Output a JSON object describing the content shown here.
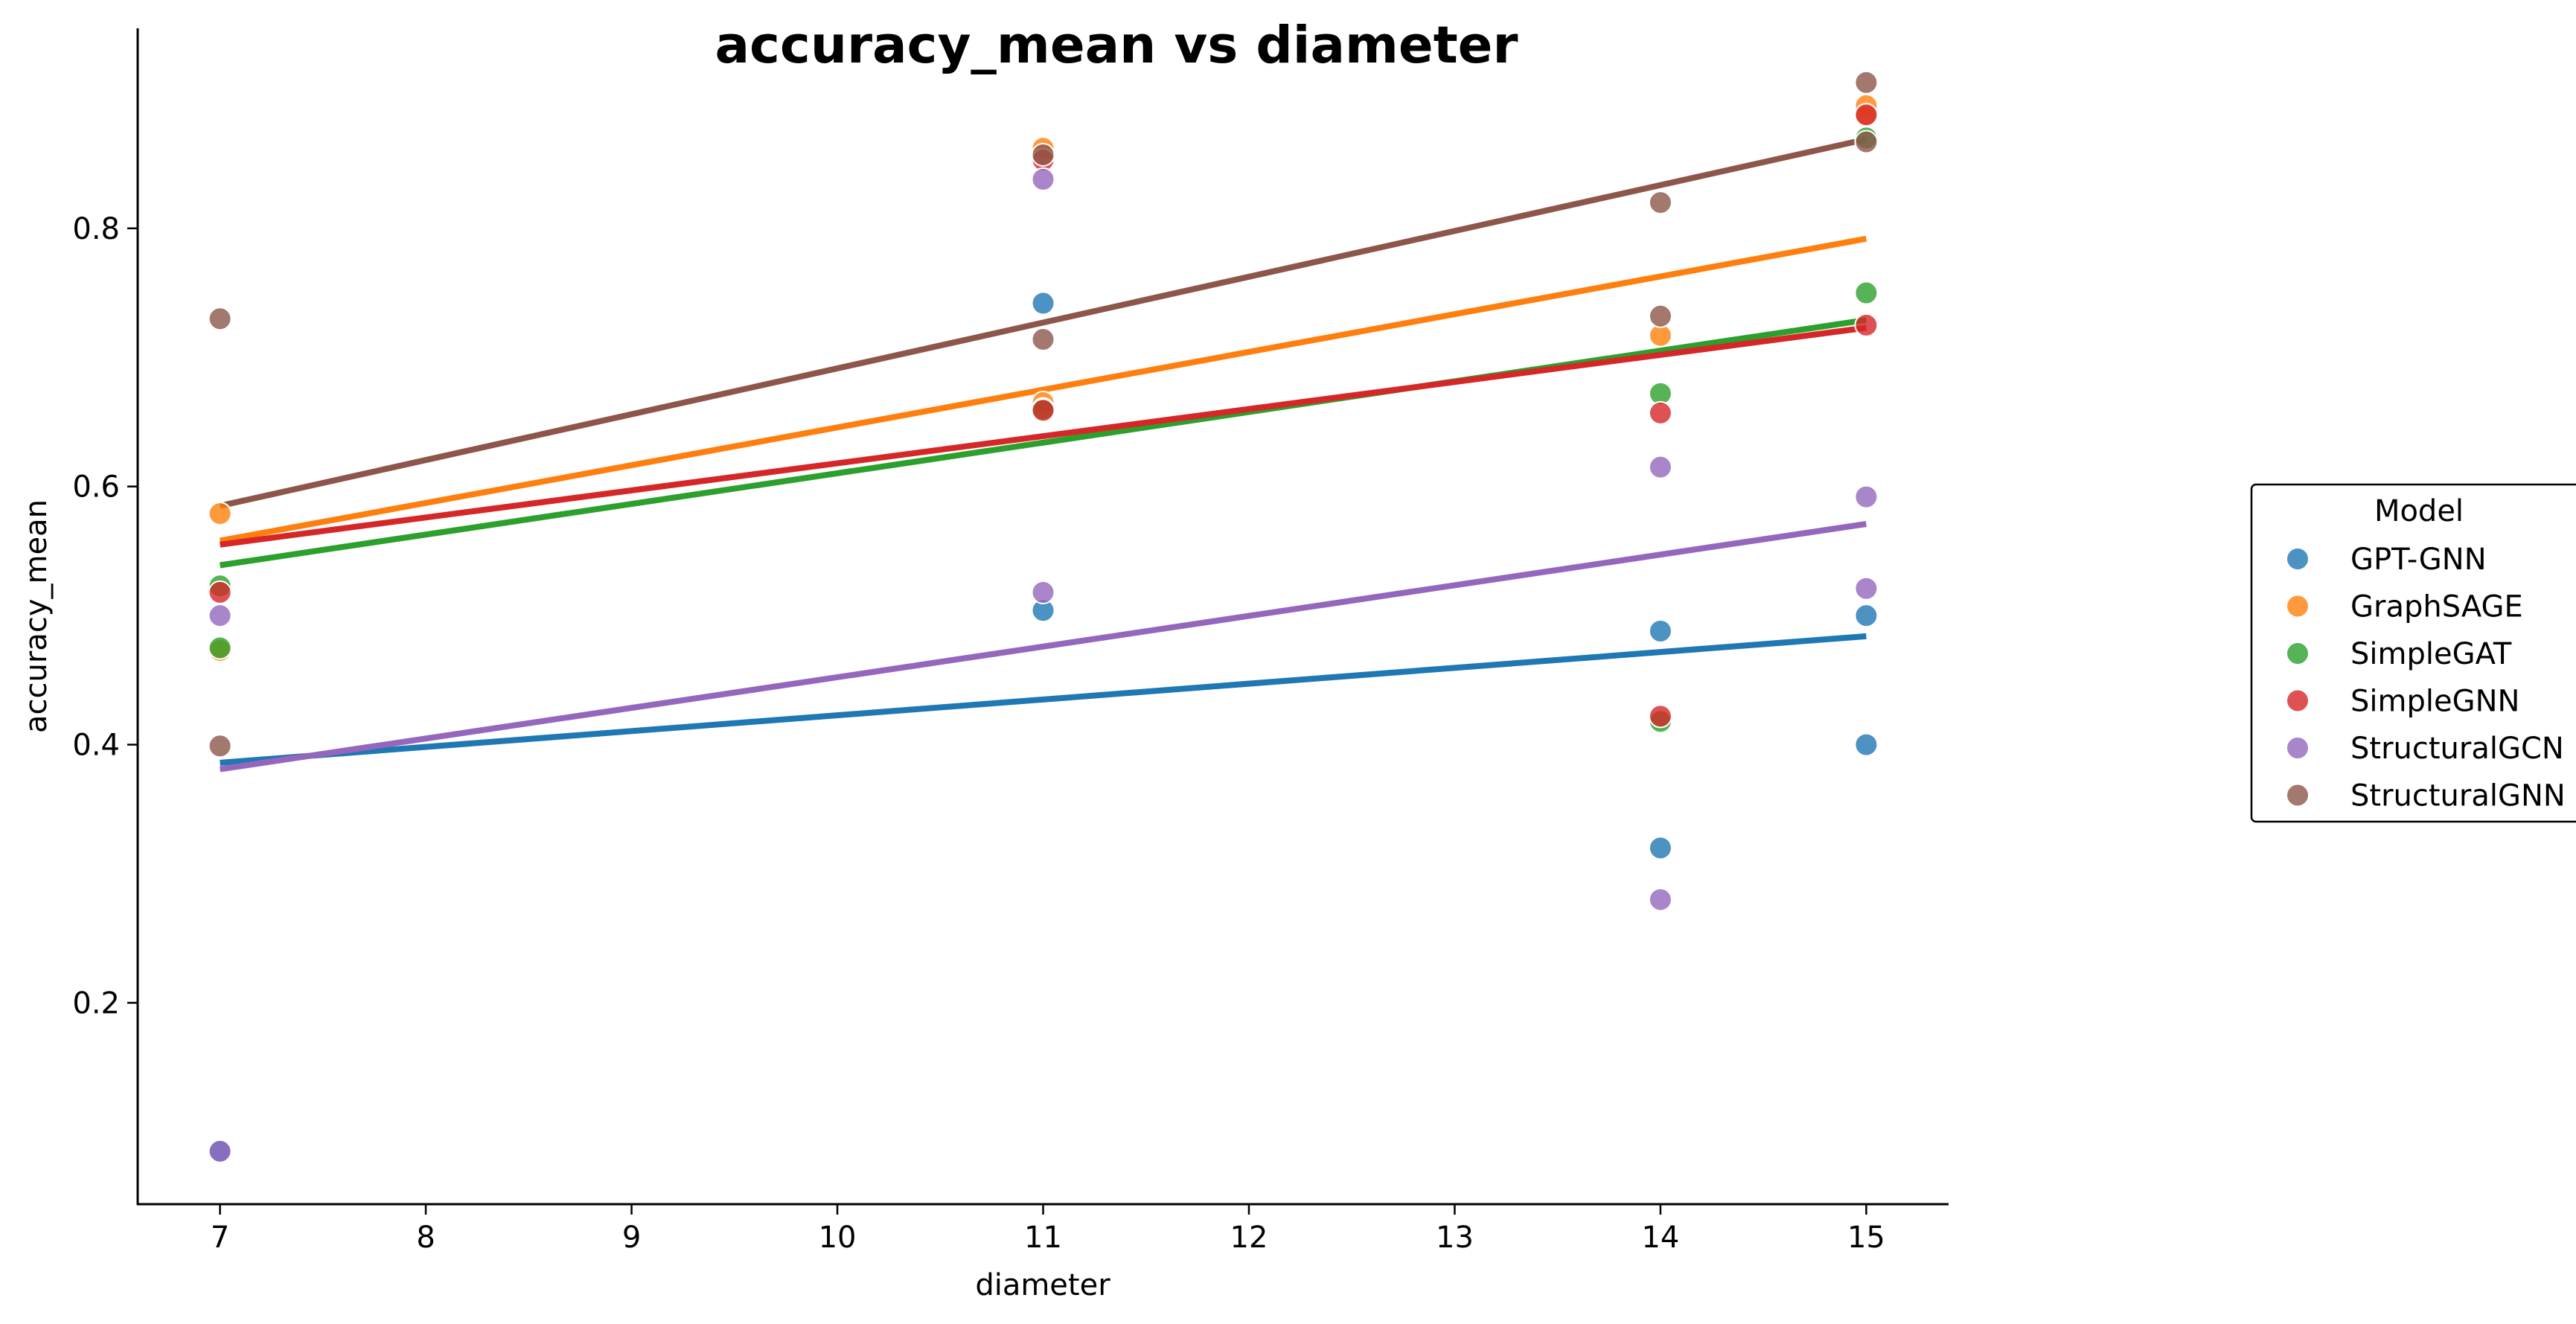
{
  "chart_data": {
    "type": "scatter",
    "title": "accuracy_mean vs diameter",
    "xlabel": "diameter",
    "ylabel": "accuracy_mean",
    "xlim": [
      6.6,
      15.4
    ],
    "ylim": [
      0.044,
      0.955
    ],
    "xticks": [
      7,
      8,
      9,
      10,
      11,
      12,
      13,
      14,
      15
    ],
    "yticks": [
      0.2,
      0.4,
      0.6,
      0.8
    ],
    "grid": false,
    "legend": {
      "title": "Model",
      "placement": "right"
    },
    "series": [
      {
        "name": "GPT-GNN",
        "color": "#1f77b4",
        "points": [
          [
            7,
            0.085
          ],
          [
            11,
            0.742
          ],
          [
            11,
            0.504
          ],
          [
            14,
            0.488
          ],
          [
            14,
            0.32
          ],
          [
            15,
            0.5
          ],
          [
            15,
            0.4
          ]
        ],
        "trend": [
          [
            7,
            0.386
          ],
          [
            15,
            0.484
          ]
        ]
      },
      {
        "name": "GraphSAGE",
        "color": "#ff7f0e",
        "points": [
          [
            7,
            0.579
          ],
          [
            7,
            0.473
          ],
          [
            11,
            0.862
          ],
          [
            11,
            0.665
          ],
          [
            14,
            0.717
          ],
          [
            15,
            0.895
          ],
          [
            15,
            0.887
          ]
        ],
        "trend": [
          [
            7,
            0.558
          ],
          [
            15,
            0.792
          ]
        ]
      },
      {
        "name": "SimpleGAT",
        "color": "#2ca02c",
        "points": [
          [
            7,
            0.523
          ],
          [
            7,
            0.475
          ],
          [
            11,
            0.66
          ],
          [
            14,
            0.672
          ],
          [
            14,
            0.418
          ],
          [
            15,
            0.75
          ],
          [
            15,
            0.87
          ]
        ],
        "trend": [
          [
            7,
            0.539
          ],
          [
            15,
            0.729
          ]
        ]
      },
      {
        "name": "SimpleGNN",
        "color": "#d62728",
        "points": [
          [
            7,
            0.518
          ],
          [
            11,
            0.853
          ],
          [
            11,
            0.659
          ],
          [
            14,
            0.657
          ],
          [
            14,
            0.422
          ],
          [
            15,
            0.888
          ],
          [
            15,
            0.725
          ]
        ],
        "trend": [
          [
            7,
            0.555
          ],
          [
            15,
            0.723
          ]
        ]
      },
      {
        "name": "StructuralGCN",
        "color": "#9467bd",
        "points": [
          [
            7,
            0.5
          ],
          [
            7,
            0.085
          ],
          [
            11,
            0.838
          ],
          [
            11,
            0.518
          ],
          [
            14,
            0.615
          ],
          [
            14,
            0.28
          ],
          [
            15,
            0.592
          ],
          [
            15,
            0.521
          ]
        ],
        "trend": [
          [
            7,
            0.381
          ],
          [
            15,
            0.571
          ]
        ]
      },
      {
        "name": "StructuralGNN",
        "color": "#8c564b",
        "points": [
          [
            7,
            0.73
          ],
          [
            7,
            0.399
          ],
          [
            11,
            0.857
          ],
          [
            11,
            0.714
          ],
          [
            14,
            0.82
          ],
          [
            14,
            0.732
          ],
          [
            15,
            0.913
          ],
          [
            15,
            0.867
          ]
        ],
        "trend": [
          [
            7,
            0.585
          ],
          [
            15,
            0.869
          ]
        ]
      }
    ]
  }
}
